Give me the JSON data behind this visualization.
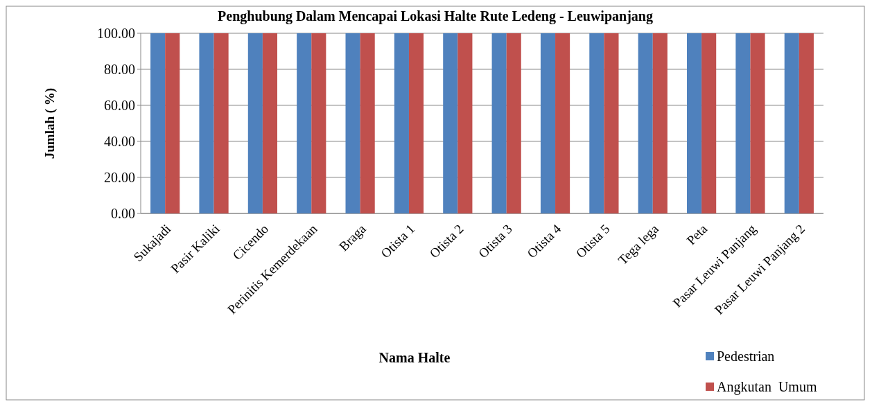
{
  "chart_data": {
    "type": "bar",
    "title": "Penghubung Dalam Mencapai Lokasi Halte Rute Ledeng - Leuwipanjang",
    "xlabel": "Nama Halte",
    "ylabel": "Jumlah ( %)",
    "categories": [
      "Sukajadi",
      "Pasir Kaliki",
      "Cicendo",
      "Perinitis Kemerdekaan",
      "Braga",
      "Otista 1",
      "Otista 2",
      "Otista 3",
      "Otista 4",
      "Otista 5",
      "Tega lega",
      "Peta",
      "Pasar Leuwi Panjang",
      "Pasar Leuwi Panjang 2"
    ],
    "series": [
      {
        "name": "Pedestrian",
        "color": "#4f81bd",
        "values": [
          100,
          100,
          100,
          100,
          100,
          100,
          100,
          100,
          100,
          100,
          100,
          100,
          100,
          100
        ]
      },
      {
        "name": "Angkutan  Umum",
        "color": "#c0504d",
        "values": [
          100,
          100,
          100,
          100,
          100,
          100,
          100,
          100,
          100,
          100,
          100,
          100,
          100,
          100
        ]
      }
    ],
    "ylim": [
      0,
      100
    ],
    "yticks": [
      {
        "value": 0,
        "label": "0.00"
      },
      {
        "value": 20,
        "label": "20.00"
      },
      {
        "value": 40,
        "label": "40.00"
      },
      {
        "value": 60,
        "label": "60.00"
      },
      {
        "value": 80,
        "label": "80.00"
      },
      {
        "value": 100,
        "label": "100.00"
      }
    ],
    "grid": "y",
    "legend": "bottom right"
  }
}
